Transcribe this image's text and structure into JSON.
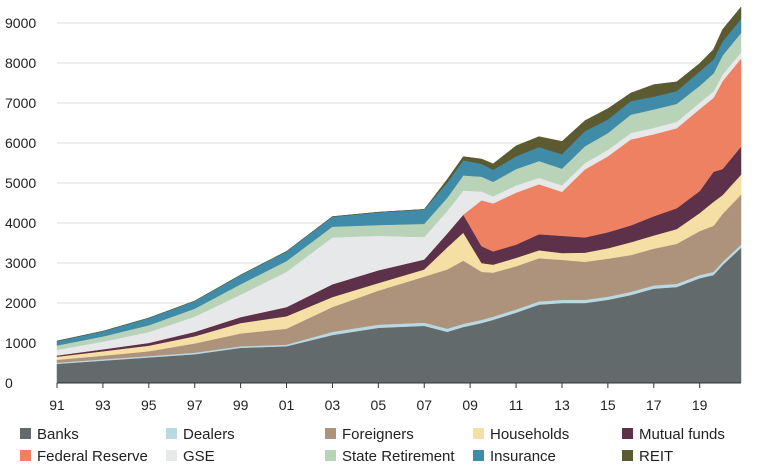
{
  "chart_data": {
    "type": "area",
    "stacked": true,
    "title": "",
    "xlabel": "",
    "ylabel": "",
    "ylim": [
      0,
      9000
    ],
    "xlim": [
      1991,
      2020.8
    ],
    "yticks": [
      0,
      1000,
      2000,
      3000,
      4000,
      5000,
      6000,
      7000,
      8000,
      9000
    ],
    "ytick_labels": [
      "0",
      "1000",
      "2000",
      "3000",
      "4000",
      "5000",
      "6000",
      "7000",
      "8000",
      "9000"
    ],
    "xticks": [
      1991,
      1993,
      1995,
      1997,
      1999,
      2001,
      2003,
      2005,
      2007,
      2009,
      2011,
      2013,
      2015,
      2017,
      2019
    ],
    "xtick_labels": [
      "91",
      "93",
      "95",
      "97",
      "99",
      "01",
      "03",
      "05",
      "07",
      "09",
      "11",
      "13",
      "15",
      "17",
      "19"
    ],
    "grid": "horizontal",
    "legend_position": "bottom",
    "x": [
      1991,
      1993,
      1995,
      1997,
      1999,
      2001,
      2003,
      2005,
      2007,
      2008,
      2008.7,
      2009.5,
      2010,
      2011,
      2012,
      2013,
      2014,
      2015,
      2016,
      2017,
      2018,
      2019,
      2019.6,
      2020,
      2020.8
    ],
    "series": [
      {
        "name": "Banks",
        "color": "#626a6c",
        "values": [
          480,
          560,
          640,
          720,
          880,
          920,
          1200,
          1380,
          1430,
          1280,
          1400,
          1500,
          1580,
          1760,
          1960,
          2000,
          2000,
          2080,
          2200,
          2360,
          2400,
          2620,
          2700,
          2950,
          3380
        ]
      },
      {
        "name": "Dealers",
        "color": "#b9d8e2",
        "values": [
          30,
          35,
          35,
          40,
          40,
          40,
          80,
          80,
          80,
          80,
          80,
          80,
          80,
          80,
          80,
          80,
          80,
          80,
          80,
          80,
          80,
          80,
          80,
          80,
          80
        ]
      },
      {
        "name": "Foreigners",
        "color": "#ae937c",
        "values": [
          70,
          90,
          120,
          230,
          320,
          400,
          620,
          850,
          1150,
          1480,
          1580,
          1200,
          1100,
          1080,
          1080,
          1000,
          950,
          950,
          920,
          920,
          1000,
          1100,
          1150,
          1200,
          1250
        ]
      },
      {
        "name": "Households",
        "color": "#f5dfa4",
        "values": [
          80,
          110,
          140,
          180,
          260,
          310,
          250,
          190,
          180,
          550,
          700,
          220,
          200,
          210,
          200,
          170,
          230,
          260,
          320,
          330,
          370,
          450,
          600,
          470,
          500
        ]
      },
      {
        "name": "Mutual funds",
        "color": "#5c3149",
        "values": [
          30,
          50,
          70,
          110,
          150,
          230,
          320,
          320,
          250,
          350,
          450,
          420,
          330,
          330,
          400,
          430,
          380,
          400,
          420,
          480,
          520,
          550,
          750,
          650,
          700
        ]
      },
      {
        "name": "Federal Reserve",
        "color": "#ef8163",
        "values": [
          0,
          0,
          0,
          0,
          0,
          0,
          0,
          0,
          0,
          0,
          0,
          1150,
          1200,
          1300,
          1250,
          1100,
          1700,
          1900,
          2150,
          2050,
          2000,
          2050,
          1850,
          2200,
          2200
        ]
      },
      {
        "name": "GSE",
        "color": "#e7e8ea",
        "values": [
          140,
          190,
          270,
          380,
          560,
          880,
          1170,
          860,
          560,
          560,
          600,
          220,
          180,
          180,
          160,
          160,
          160,
          160,
          160,
          160,
          160,
          160,
          160,
          160,
          160
        ]
      },
      {
        "name": "State Retirement",
        "color": "#b9d3b8",
        "values": [
          110,
          130,
          170,
          200,
          260,
          270,
          270,
          270,
          330,
          330,
          380,
          370,
          360,
          410,
          420,
          420,
          420,
          420,
          460,
          460,
          450,
          420,
          450,
          480,
          480
        ]
      },
      {
        "name": "Insurance",
        "color": "#3f8ba8",
        "values": [
          110,
          130,
          180,
          190,
          230,
          240,
          250,
          320,
          360,
          380,
          380,
          320,
          300,
          320,
          350,
          360,
          380,
          340,
          340,
          320,
          320,
          360,
          350,
          350,
          350
        ]
      },
      {
        "name": "REIT",
        "color": "#5c5a30",
        "values": [
          0,
          0,
          0,
          0,
          0,
          0,
          0,
          0,
          0,
          80,
          90,
          120,
          150,
          260,
          260,
          320,
          260,
          270,
          200,
          300,
          230,
          200,
          250,
          300,
          300
        ]
      }
    ]
  }
}
